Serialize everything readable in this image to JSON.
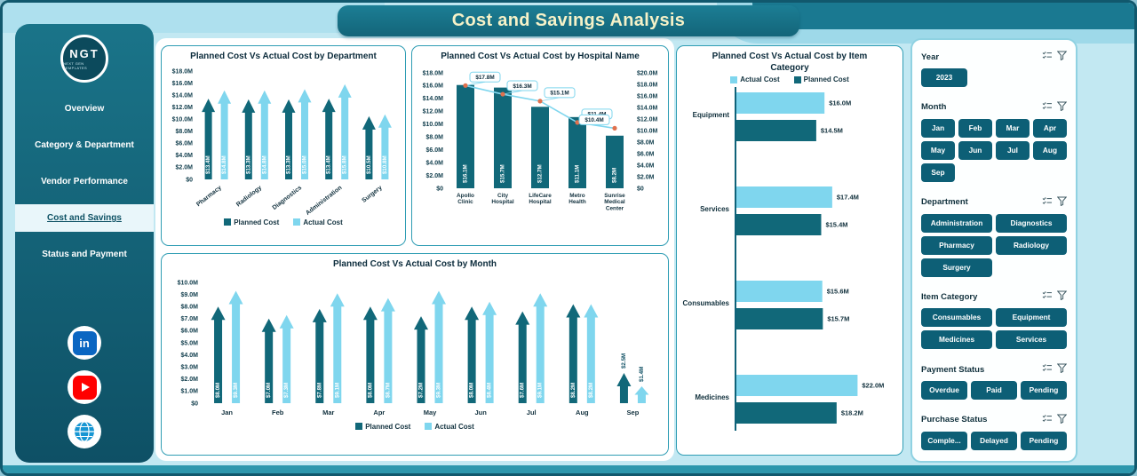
{
  "header": {
    "title": "Cost and Savings Analysis"
  },
  "sidebar": {
    "logo": {
      "text": "NGT",
      "subtext": "NEXT GEN TEMPLATES"
    },
    "items": [
      {
        "label": "Overview",
        "active": false
      },
      {
        "label": "Category & Department",
        "active": false
      },
      {
        "label": "Vendor Performance",
        "active": false
      },
      {
        "label": "Cost and Savings",
        "active": true
      },
      {
        "label": "Status and Payment",
        "active": false
      }
    ],
    "social_icons": [
      "linkedin",
      "youtube",
      "website"
    ]
  },
  "colors": {
    "dark_teal": "#116879",
    "light_blue": "#7fd6ee",
    "marker_orange": "#e0714e",
    "header_bg": "#187287",
    "header_text": "#f6f2c8",
    "sidebar_bg": "#14677c",
    "panel_border": "#2f9db4",
    "button_bg": "#0d5f76",
    "background": "#c2e8f2"
  },
  "chart_data": [
    {
      "id": "department",
      "type": "bar",
      "bar_style": "arrow",
      "title": "Planned Cost Vs Actual Cost by Department",
      "categories": [
        "Pharmacy",
        "Radiology",
        "Diagnostics",
        "Administration",
        "Surgery"
      ],
      "series": [
        {
          "name": "Planned Cost",
          "color": "#116879",
          "values": [
            13.4,
            13.3,
            13.3,
            13.4,
            10.5
          ]
        },
        {
          "name": "Actual Cost",
          "color": "#7fd6ee",
          "values": [
            14.8,
            14.8,
            15.0,
            15.8,
            10.8
          ]
        }
      ],
      "ylim": [
        0,
        18
      ],
      "ytick_step": 2,
      "legend_position": "bottom"
    },
    {
      "id": "hospital",
      "type": "bar-line-combo",
      "title": "Planned Cost Vs Actual Cost by Hospital Name",
      "categories": [
        "Apollo Clinic",
        "City Hospital",
        "LifeCare Hospital",
        "Metro Health",
        "Sunrise Medical Center"
      ],
      "series": [
        {
          "name": "Planned Cost",
          "type": "bar",
          "color": "#116879",
          "values": [
            16.1,
            15.7,
            12.7,
            11.1,
            8.2
          ]
        },
        {
          "name": "Actual Cost",
          "type": "line",
          "color": "#7fd6ee",
          "values": [
            17.8,
            16.3,
            15.1,
            11.4,
            10.4
          ]
        }
      ],
      "ylim_left": [
        0,
        18
      ],
      "ylim_right": [
        0,
        20
      ],
      "ytick_step": 2
    },
    {
      "id": "month",
      "type": "bar",
      "bar_style": "arrow",
      "title": "Planned Cost Vs Actual Cost by Month",
      "categories": [
        "Jan",
        "Feb",
        "Mar",
        "Apr",
        "May",
        "Jun",
        "Jul",
        "Aug",
        "Sep"
      ],
      "series": [
        {
          "name": "Planned Cost",
          "color": "#116879",
          "values": [
            8.0,
            7.0,
            7.8,
            8.0,
            7.2,
            8.0,
            7.6,
            8.2,
            2.5
          ]
        },
        {
          "name": "Actual Cost",
          "color": "#7fd6ee",
          "values": [
            9.3,
            7.3,
            9.1,
            8.7,
            9.3,
            8.4,
            9.1,
            8.2,
            1.4
          ]
        }
      ],
      "ylim": [
        0,
        10
      ],
      "ytick_step": 1,
      "legend_position": "bottom"
    },
    {
      "id": "item_category",
      "type": "bar",
      "orientation": "horizontal",
      "title": "Planned Cost Vs Actual Cost by Item Category",
      "categories": [
        "Equipment",
        "Services",
        "Consumables",
        "Medicines"
      ],
      "series": [
        {
          "name": "Actual Cost",
          "color": "#7fd6ee",
          "values": [
            16.0,
            17.4,
            15.6,
            22.0
          ]
        },
        {
          "name": "Planned Cost",
          "color": "#116879",
          "values": [
            14.5,
            15.4,
            15.7,
            18.2
          ]
        }
      ],
      "xlim": [
        0,
        24
      ],
      "legend_position": "top"
    }
  ],
  "filters": {
    "sections": [
      {
        "label": "Year",
        "cols": 3,
        "options": [
          "2023"
        ]
      },
      {
        "label": "Month",
        "cols": 4,
        "options": [
          "Jan",
          "Feb",
          "Mar",
          "Apr",
          "May",
          "Jun",
          "Jul",
          "Aug",
          "Sep"
        ]
      },
      {
        "label": "Department",
        "cols": 2,
        "options": [
          "Administration",
          "Diagnostics",
          "Pharmacy",
          "Radiology",
          "Surgery"
        ]
      },
      {
        "label": "Item Category",
        "cols": 2,
        "options": [
          "Consumables",
          "Equipment",
          "Medicines",
          "Services"
        ]
      },
      {
        "label": "Payment Status",
        "cols": 3,
        "options": [
          "Overdue",
          "Paid",
          "Pending"
        ]
      },
      {
        "label": "Purchase Status",
        "cols": 3,
        "options": [
          "Comple...",
          "Delayed",
          "Pending"
        ]
      }
    ]
  }
}
